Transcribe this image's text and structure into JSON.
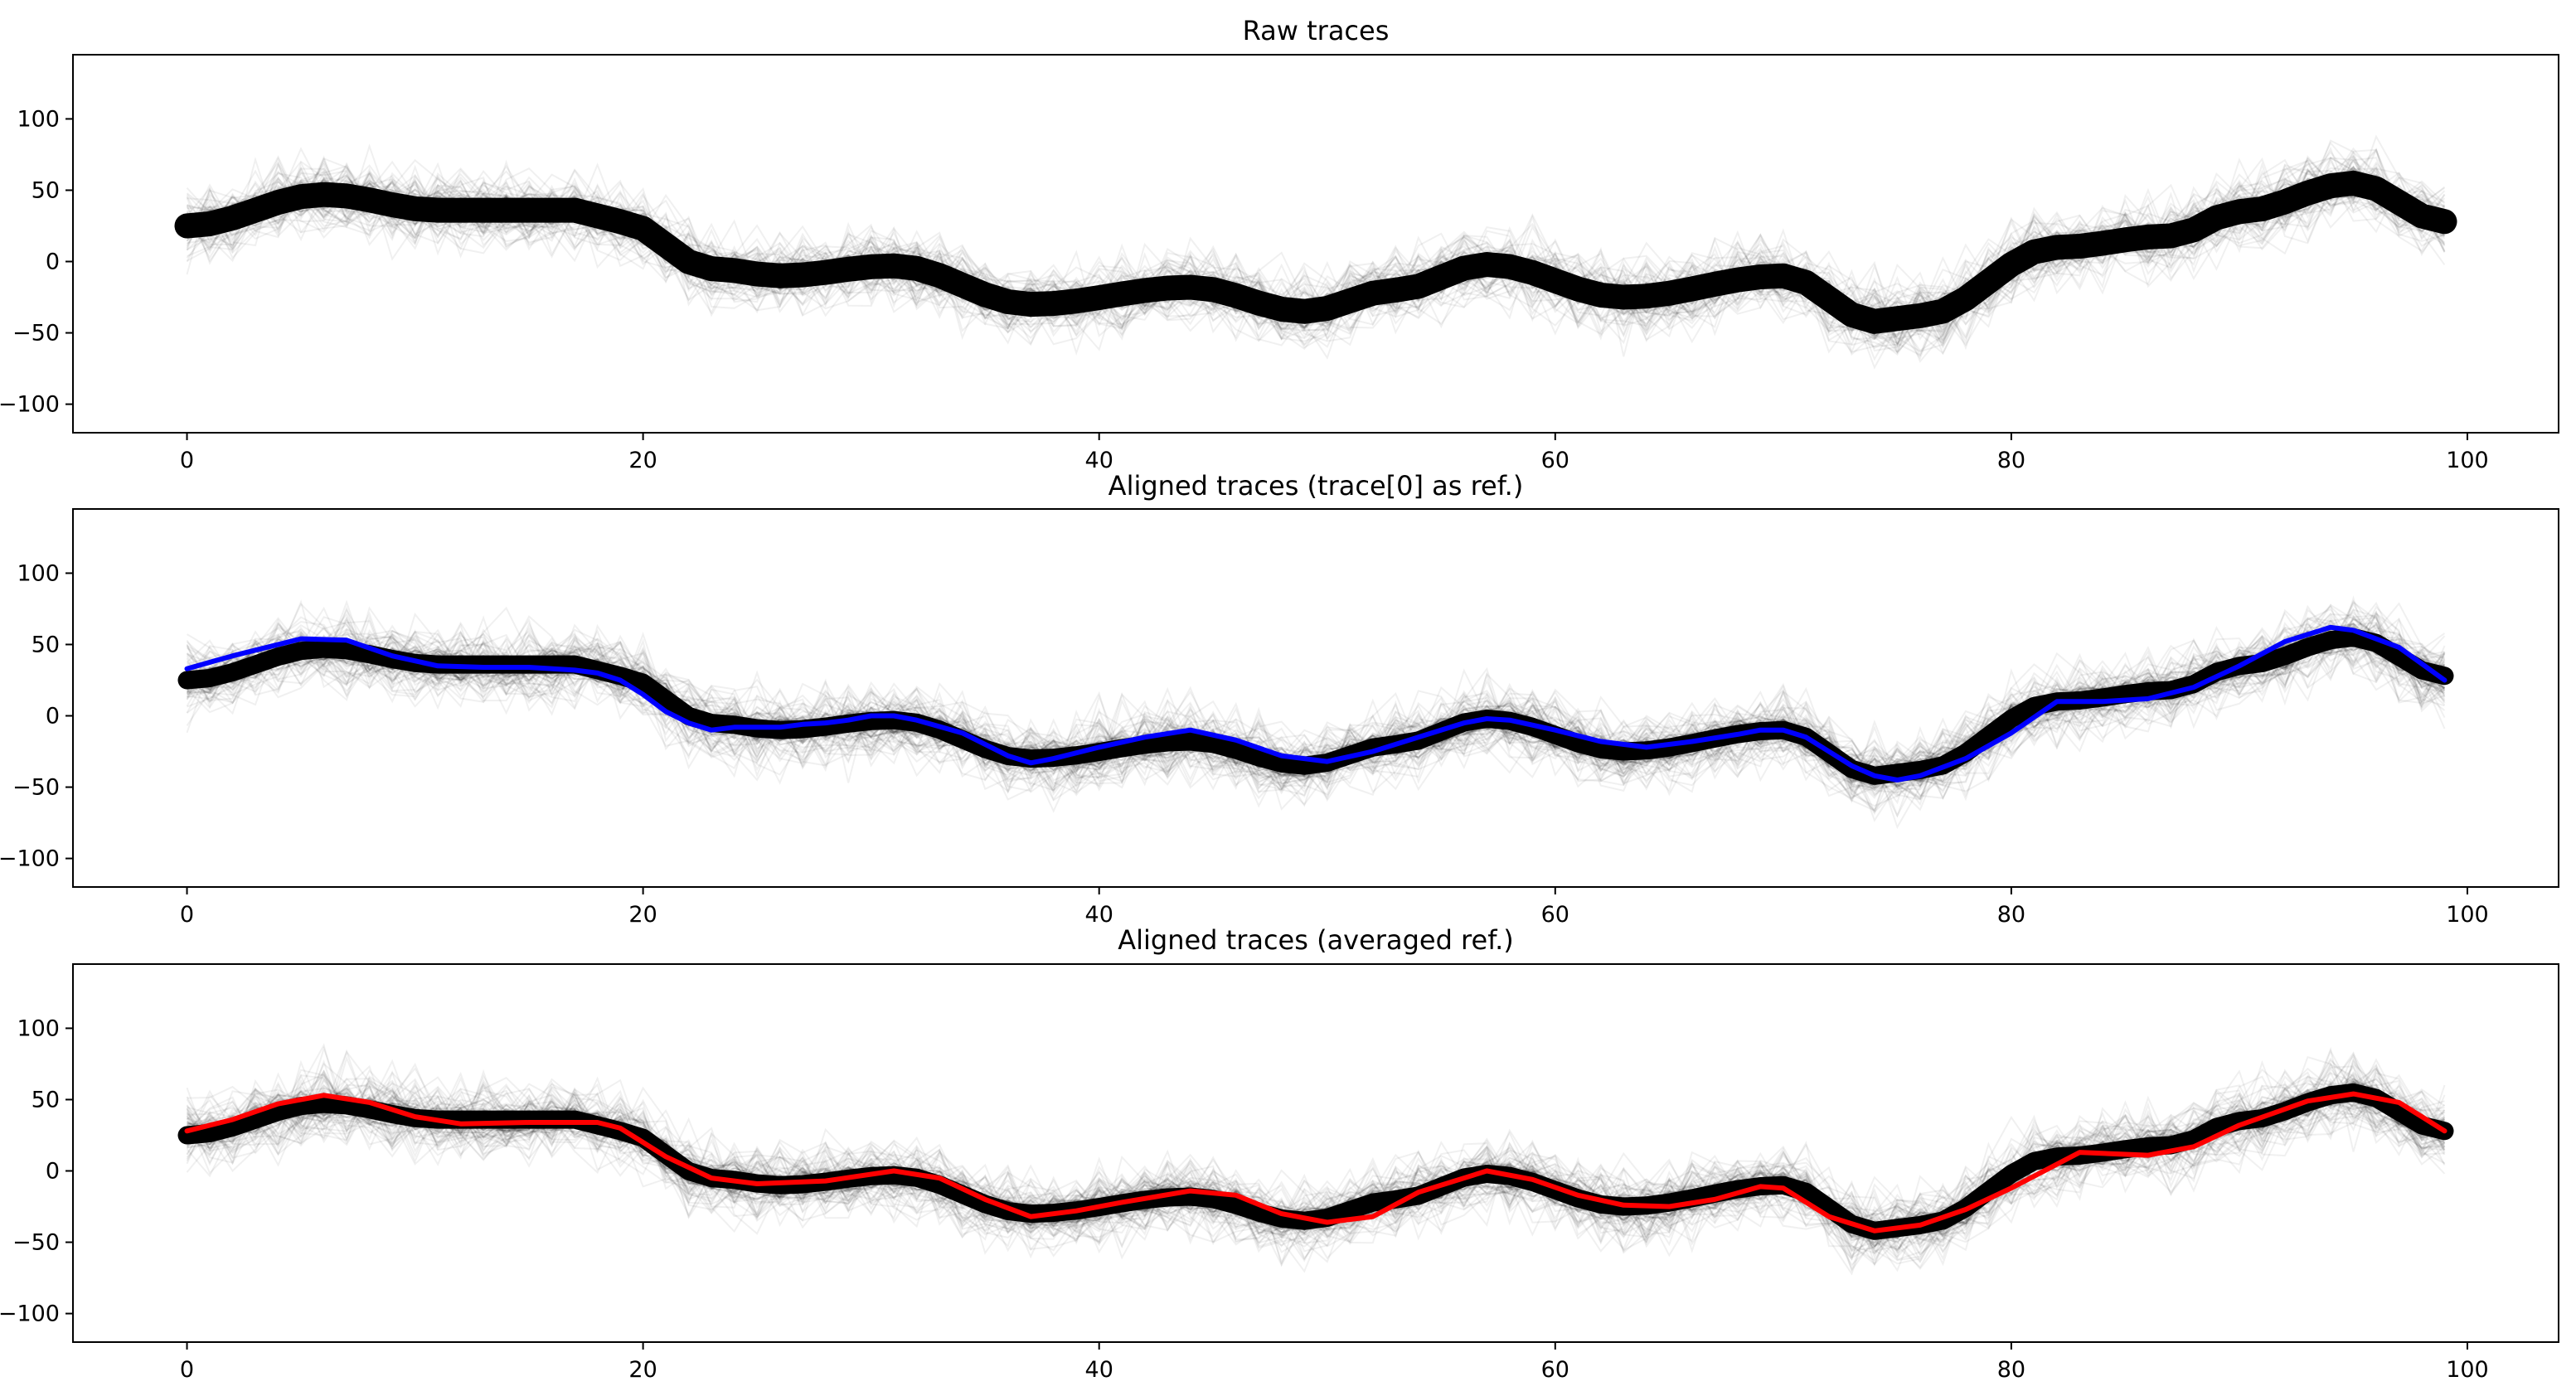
{
  "figure": {
    "background": "#ffffff"
  },
  "chart_data": [
    {
      "type": "line",
      "title": "Raw traces",
      "xlabel": "",
      "ylabel": "",
      "xlim": [
        -5,
        104
      ],
      "ylim": [
        -120,
        145
      ],
      "xticks": [
        0,
        20,
        40,
        60,
        80,
        100
      ],
      "yticks": [
        -100,
        -50,
        0,
        50,
        100
      ],
      "grid": false,
      "trace_color": "#000000",
      "n_traces": 200,
      "envelope": {
        "x": [
          0,
          6,
          11,
          17,
          19,
          23,
          26,
          31,
          37,
          44,
          49,
          53,
          57,
          63,
          70,
          74,
          76,
          82,
          87,
          90,
          95,
          99
        ],
        "y": [
          25,
          47,
          36,
          36,
          28,
          -5,
          -10,
          -3,
          -30,
          -18,
          -35,
          -20,
          -2,
          -25,
          -10,
          -42,
          -38,
          10,
          18,
          35,
          55,
          28
        ]
      },
      "reference": null
    },
    {
      "type": "line",
      "title": "Aligned traces (trace[0] as ref.)",
      "xlabel": "",
      "ylabel": "",
      "xlim": [
        -5,
        104
      ],
      "ylim": [
        -120,
        145
      ],
      "xticks": [
        0,
        20,
        40,
        60,
        80,
        100
      ],
      "yticks": [
        -100,
        -50,
        0,
        50,
        100
      ],
      "grid": false,
      "trace_color": "#000000",
      "n_traces": 200,
      "envelope": {
        "x": [
          0,
          6,
          11,
          17,
          19,
          23,
          26,
          31,
          37,
          44,
          49,
          53,
          57,
          63,
          70,
          74,
          76,
          82,
          87,
          90,
          95,
          99
        ],
        "y": [
          25,
          47,
          36,
          36,
          28,
          -5,
          -10,
          -3,
          -30,
          -18,
          -35,
          -20,
          -2,
          -25,
          -10,
          -42,
          -38,
          10,
          18,
          35,
          55,
          28
        ]
      },
      "reference": {
        "name": "trace[0]",
        "color": "#0000ff",
        "x": [
          0,
          2,
          5,
          7,
          9,
          11,
          13,
          15,
          17,
          18,
          19,
          20,
          21,
          22,
          23,
          24,
          25,
          26,
          27,
          28,
          29,
          30,
          31,
          32,
          34,
          36,
          37,
          38,
          40,
          42,
          44,
          46,
          48,
          50,
          52,
          54,
          56,
          57,
          58,
          60,
          62,
          64,
          66,
          68,
          69,
          70,
          71,
          72,
          73,
          74,
          75,
          76,
          78,
          80,
          82,
          84,
          86,
          88,
          90,
          92,
          94,
          95,
          97,
          99
        ],
        "y": [
          33,
          42,
          54,
          53,
          42,
          35,
          34,
          34,
          32,
          30,
          25,
          15,
          3,
          -5,
          -10,
          -8,
          -8,
          -8,
          -6,
          -5,
          -3,
          0,
          0,
          -3,
          -12,
          -28,
          -33,
          -30,
          -22,
          -15,
          -10,
          -17,
          -28,
          -32,
          -25,
          -15,
          -5,
          -2,
          -3,
          -10,
          -18,
          -22,
          -18,
          -13,
          -10,
          -10,
          -15,
          -25,
          -35,
          -42,
          -45,
          -42,
          -30,
          -12,
          10,
          10,
          12,
          20,
          35,
          52,
          62,
          60,
          48,
          25
        ]
      }
    },
    {
      "type": "line",
      "title": "Aligned traces (averaged ref.)",
      "xlabel": "",
      "ylabel": "",
      "xlim": [
        -5,
        104
      ],
      "ylim": [
        -120,
        145
      ],
      "xticks": [
        0,
        20,
        40,
        60,
        80,
        100
      ],
      "yticks": [
        -100,
        -50,
        0,
        50,
        100
      ],
      "grid": false,
      "trace_color": "#000000",
      "n_traces": 200,
      "envelope": {
        "x": [
          0,
          6,
          11,
          17,
          19,
          23,
          26,
          31,
          37,
          44,
          49,
          53,
          57,
          63,
          70,
          74,
          76,
          82,
          87,
          90,
          95,
          99
        ],
        "y": [
          25,
          47,
          36,
          36,
          28,
          -5,
          -10,
          -3,
          -30,
          -18,
          -35,
          -20,
          -2,
          -25,
          -10,
          -42,
          -38,
          10,
          18,
          35,
          55,
          28
        ]
      },
      "reference": {
        "name": "averaged ref.",
        "color": "#ff0000",
        "x": [
          0,
          2,
          4,
          6,
          8,
          10,
          12,
          15,
          18,
          19,
          21,
          23,
          25,
          28,
          31,
          33,
          35,
          37,
          39,
          41,
          44,
          46,
          48,
          50,
          52,
          54,
          57,
          59,
          61,
          63,
          65,
          67,
          69,
          70,
          72,
          74,
          76,
          78,
          80,
          83,
          86,
          88,
          90,
          93,
          95,
          97,
          99
        ],
        "y": [
          28,
          36,
          47,
          53,
          48,
          38,
          33,
          34,
          34,
          30,
          10,
          -5,
          -9,
          -7,
          0,
          -5,
          -20,
          -32,
          -28,
          -22,
          -14,
          -17,
          -30,
          -36,
          -32,
          -15,
          0,
          -6,
          -17,
          -24,
          -25,
          -20,
          -11,
          -12,
          -32,
          -42,
          -38,
          -27,
          -12,
          13,
          11,
          17,
          32,
          49,
          54,
          48,
          28
        ]
      }
    }
  ]
}
